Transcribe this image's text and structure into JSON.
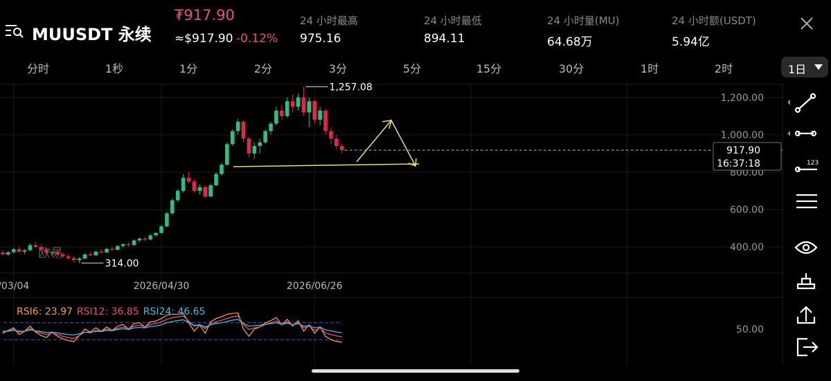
{
  "header": {
    "symbol": "MUUSDT 永续",
    "price": "₮917.90",
    "price_usd": "≈$917.90",
    "change": "-0.12%",
    "stats": [
      {
        "label": "24 小时最高",
        "value": "975.16"
      },
      {
        "label": "24 小时最低",
        "value": "894.11"
      },
      {
        "label": "24 小时量(MU)",
        "value": "64.68万"
      },
      {
        "label": "24 小时额(USDT)",
        "value": "5.94亿"
      }
    ]
  },
  "timeframes": [
    "分时",
    "1秒",
    "1分",
    "2分",
    "3分",
    "5分",
    "15分",
    "30分",
    "1时",
    "2时"
  ],
  "selected_timeframe": "1日",
  "chart_data": [
    {
      "type": "candlestick",
      "watermark": "欧易",
      "up_color": "#2ebd85",
      "down_color": "#e0294a",
      "categories": [
        null,
        null,
        "/03/04",
        null,
        null,
        null,
        null,
        null,
        null,
        null,
        null,
        null,
        null,
        null,
        null,
        null,
        null,
        null,
        null,
        null,
        null,
        null,
        null,
        null,
        null,
        null,
        null,
        null,
        null,
        "2026/04/30",
        null,
        null,
        null,
        null,
        null,
        null,
        null,
        null,
        null,
        null,
        null,
        null,
        null,
        null,
        null,
        null,
        null,
        null,
        null,
        null,
        null,
        null,
        null,
        null,
        null,
        null,
        null,
        "2026/06/26",
        null,
        null,
        null,
        null,
        null
      ],
      "ohlc": [
        [
          370,
          385,
          355,
          360
        ],
        [
          360,
          378,
          350,
          372
        ],
        [
          372,
          395,
          365,
          388
        ],
        [
          388,
          400,
          370,
          375
        ],
        [
          375,
          390,
          360,
          382
        ],
        [
          382,
          420,
          378,
          410
        ],
        [
          410,
          430,
          395,
          400
        ],
        [
          400,
          412,
          380,
          385
        ],
        [
          385,
          395,
          360,
          368
        ],
        [
          368,
          380,
          350,
          372
        ],
        [
          372,
          385,
          355,
          360
        ],
        [
          360,
          372,
          340,
          350
        ],
        [
          350,
          362,
          330,
          340
        ],
        [
          340,
          350,
          318,
          330
        ],
        [
          330,
          345,
          314,
          338
        ],
        [
          338,
          365,
          335,
          360
        ],
        [
          360,
          372,
          350,
          355
        ],
        [
          355,
          380,
          352,
          375
        ],
        [
          375,
          388,
          365,
          370
        ],
        [
          370,
          395,
          368,
          390
        ],
        [
          390,
          400,
          378,
          385
        ],
        [
          385,
          410,
          382,
          405
        ],
        [
          405,
          420,
          395,
          415
        ],
        [
          415,
          425,
          400,
          410
        ],
        [
          410,
          440,
          405,
          435
        ],
        [
          435,
          450,
          425,
          445
        ],
        [
          445,
          455,
          430,
          440
        ],
        [
          440,
          470,
          435,
          462
        ],
        [
          462,
          480,
          455,
          475
        ],
        [
          475,
          520,
          470,
          510
        ],
        [
          510,
          590,
          505,
          580
        ],
        [
          580,
          660,
          570,
          650
        ],
        [
          650,
          710,
          640,
          700
        ],
        [
          700,
          790,
          690,
          770
        ],
        [
          770,
          800,
          740,
          750
        ],
        [
          750,
          760,
          690,
          700
        ],
        [
          700,
          735,
          680,
          720
        ],
        [
          720,
          730,
          660,
          670
        ],
        [
          670,
          740,
          665,
          730
        ],
        [
          730,
          800,
          725,
          790
        ],
        [
          790,
          850,
          780,
          840
        ],
        [
          840,
          960,
          835,
          950
        ],
        [
          950,
          1030,
          940,
          1020
        ],
        [
          1020,
          1085,
          1000,
          1070
        ],
        [
          1070,
          1080,
          960,
          980
        ],
        [
          980,
          990,
          880,
          900
        ],
        [
          900,
          960,
          870,
          940
        ],
        [
          940,
          980,
          900,
          960
        ],
        [
          960,
          1030,
          950,
          1020
        ],
        [
          1020,
          1070,
          1000,
          1060
        ],
        [
          1060,
          1150,
          1050,
          1130
        ],
        [
          1130,
          1160,
          1080,
          1100
        ],
        [
          1100,
          1200,
          1090,
          1180
        ],
        [
          1180,
          1215,
          1120,
          1150
        ],
        [
          1150,
          1220,
          1130,
          1200
        ],
        [
          1200,
          1257.08,
          1100,
          1120
        ],
        [
          1120,
          1200,
          1040,
          1180
        ],
        [
          1180,
          1190,
          1060,
          1080
        ],
        [
          1080,
          1150,
          1050,
          1130
        ],
        [
          1130,
          1140,
          1000,
          1020
        ],
        [
          1020,
          1040,
          950,
          980
        ],
        [
          980,
          1000,
          920,
          940
        ],
        [
          940,
          950,
          900,
          917.9
        ]
      ],
      "ylim": [
        260,
        1270
      ],
      "yticks": [
        {
          "value": 400,
          "label": "400.00"
        },
        {
          "value": 600,
          "label": "600.00"
        },
        {
          "value": 800,
          "label": "800.00"
        },
        {
          "value": 1000,
          "label": "1,000.00"
        },
        {
          "value": 1200,
          "label": "1,200.00"
        }
      ],
      "high_mark": {
        "value": 1257.08,
        "label": "1,257.08"
      },
      "low_mark": {
        "value": 314,
        "label": "314.00"
      },
      "last_price": {
        "value": 917.9,
        "label": "917.90"
      },
      "countdown": "16:37:18"
    },
    {
      "type": "line",
      "ylim": [
        -30,
        130
      ],
      "yticks": [
        {
          "value": 50,
          "label": "50.00"
        }
      ],
      "bands": [
        30,
        70
      ],
      "series": [
        {
          "name": "RSI6: 23.97",
          "color": "#f0a045",
          "values": [
            45,
            52,
            58,
            42,
            50,
            62,
            48,
            40,
            35,
            48,
            38,
            32,
            28,
            25,
            40,
            55,
            48,
            58,
            50,
            60,
            52,
            62,
            66,
            55,
            68,
            70,
            60,
            72,
            74,
            80,
            88,
            90,
            90,
            92,
            70,
            50,
            65,
            45,
            72,
            80,
            84,
            90,
            92,
            93,
            55,
            38,
            55,
            60,
            70,
            75,
            82,
            65,
            78,
            62,
            75,
            50,
            65,
            45,
            60,
            38,
            30,
            26,
            23.97
          ]
        },
        {
          "name": "RSI12: 36.85",
          "color": "#e8508a",
          "values": [
            48,
            50,
            54,
            48,
            50,
            56,
            50,
            46,
            42,
            46,
            42,
            38,
            35,
            33,
            40,
            48,
            46,
            52,
            50,
            55,
            52,
            57,
            60,
            56,
            62,
            64,
            60,
            66,
            68,
            72,
            78,
            82,
            84,
            86,
            74,
            62,
            66,
            56,
            68,
            72,
            76,
            80,
            84,
            86,
            66,
            54,
            58,
            60,
            66,
            70,
            74,
            66,
            72,
            64,
            70,
            58,
            62,
            52,
            58,
            46,
            42,
            39,
            36.85
          ]
        },
        {
          "name": "RSI24: 46.65",
          "color": "#4fb8d8",
          "values": [
            50,
            50,
            52,
            50,
            50,
            53,
            51,
            49,
            47,
            48,
            46,
            44,
            42,
            41,
            44,
            48,
            47,
            50,
            49,
            52,
            51,
            54,
            56,
            54,
            58,
            59,
            58,
            61,
            62,
            65,
            70,
            73,
            75,
            77,
            70,
            64,
            65,
            60,
            65,
            68,
            70,
            73,
            76,
            78,
            68,
            62,
            63,
            64,
            66,
            68,
            70,
            66,
            69,
            65,
            68,
            62,
            63,
            58,
            60,
            53,
            51,
            48,
            46.65
          ]
        }
      ]
    }
  ]
}
